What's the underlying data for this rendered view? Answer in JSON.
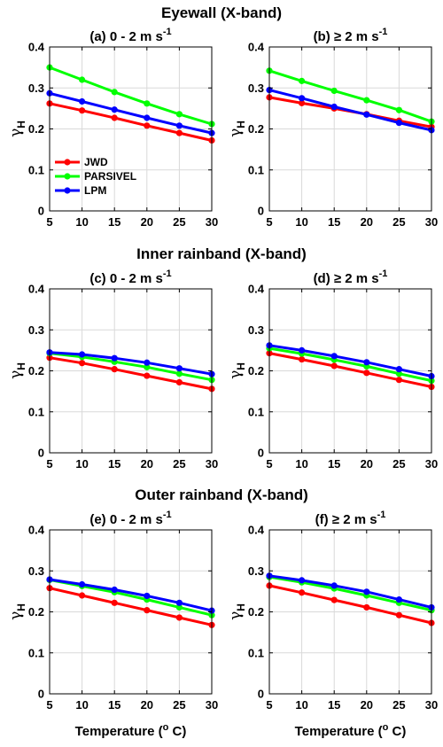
{
  "figure": {
    "rows": [
      {
        "title": "Eyewall (X-band)"
      },
      {
        "title": "Inner rainband (X-band)"
      },
      {
        "title": "Outer rainband (X-band)"
      }
    ],
    "panel_titles": [
      "(a) 0 - 2 m s",
      "(b) ≥ 2 m s",
      "(c) 0 - 2 m s",
      "(d) ≥ 2 m s",
      "(e) 0 - 2 m s",
      "(f) ≥ 2 m s"
    ],
    "panel_title_sup": "-1",
    "ylabel_main": "γ",
    "ylabel_sub": "H",
    "xlabel_main": "Temperature (",
    "xlabel_sup": "o",
    "xlabel_end": " C)"
  },
  "legend": {
    "entries": [
      "JWD",
      "PARSIVEL",
      "LPM"
    ],
    "placement": "inside panel (a), center-left"
  },
  "colors": {
    "JWD": "#ff0000",
    "PARSIVEL": "#00ff00",
    "LPM": "#0000ff",
    "grid": "#d9d9d9",
    "axes": "#000000"
  },
  "chart_data": [
    {
      "type": "line",
      "title": "(a) 0 - 2 m s-1",
      "x": [
        5,
        10,
        15,
        20,
        25,
        30
      ],
      "xlim": [
        5,
        30
      ],
      "ylim": [
        0,
        0.4
      ],
      "xticks": [
        "5",
        "10",
        "15",
        "20",
        "25",
        "30"
      ],
      "yticks": [
        "0",
        "0.1",
        "0.2",
        "0.3",
        "0.4"
      ],
      "grid": true,
      "series": [
        {
          "name": "JWD",
          "values": [
            0.262,
            0.245,
            0.227,
            0.208,
            0.19,
            0.172
          ]
        },
        {
          "name": "PARSIVEL",
          "values": [
            0.35,
            0.32,
            0.29,
            0.262,
            0.236,
            0.212
          ]
        },
        {
          "name": "LPM",
          "values": [
            0.287,
            0.267,
            0.247,
            0.227,
            0.208,
            0.19
          ]
        }
      ]
    },
    {
      "type": "line",
      "title": "(b) ≥ 2 m s-1",
      "x": [
        5,
        10,
        15,
        20,
        25,
        30
      ],
      "xlim": [
        5,
        30
      ],
      "ylim": [
        0,
        0.4
      ],
      "xticks": [
        "5",
        "10",
        "15",
        "20",
        "25",
        "30"
      ],
      "yticks": [
        "0",
        "0.1",
        "0.2",
        "0.3",
        "0.4"
      ],
      "grid": true,
      "series": [
        {
          "name": "JWD",
          "values": [
            0.277,
            0.263,
            0.25,
            0.236,
            0.22,
            0.205
          ]
        },
        {
          "name": "PARSIVEL",
          "values": [
            0.342,
            0.317,
            0.293,
            0.27,
            0.246,
            0.218
          ]
        },
        {
          "name": "LPM",
          "values": [
            0.295,
            0.275,
            0.254,
            0.235,
            0.215,
            0.197
          ]
        }
      ]
    },
    {
      "type": "line",
      "title": "(c) 0 - 2 m s-1",
      "x": [
        5,
        10,
        15,
        20,
        25,
        30
      ],
      "xlim": [
        5,
        30
      ],
      "ylim": [
        0,
        0.4
      ],
      "xticks": [
        "5",
        "10",
        "15",
        "20",
        "25",
        "30"
      ],
      "yticks": [
        "0",
        "0.1",
        "0.2",
        "0.3",
        "0.4"
      ],
      "grid": true,
      "series": [
        {
          "name": "JWD",
          "values": [
            0.232,
            0.219,
            0.204,
            0.188,
            0.172,
            0.156
          ]
        },
        {
          "name": "PARSIVEL",
          "values": [
            0.243,
            0.234,
            0.222,
            0.209,
            0.193,
            0.178
          ]
        },
        {
          "name": "LPM",
          "values": [
            0.245,
            0.24,
            0.231,
            0.22,
            0.206,
            0.192
          ]
        }
      ]
    },
    {
      "type": "line",
      "title": "(d) ≥ 2 m s-1",
      "x": [
        5,
        10,
        15,
        20,
        25,
        30
      ],
      "xlim": [
        5,
        30
      ],
      "ylim": [
        0,
        0.4
      ],
      "xticks": [
        "5",
        "10",
        "15",
        "20",
        "25",
        "30"
      ],
      "yticks": [
        "0",
        "0.1",
        "0.2",
        "0.3",
        "0.4"
      ],
      "grid": true,
      "series": [
        {
          "name": "JWD",
          "values": [
            0.243,
            0.228,
            0.212,
            0.195,
            0.178,
            0.161
          ]
        },
        {
          "name": "PARSIVEL",
          "values": [
            0.255,
            0.242,
            0.227,
            0.211,
            0.193,
            0.176
          ]
        },
        {
          "name": "LPM",
          "values": [
            0.262,
            0.25,
            0.236,
            0.221,
            0.204,
            0.187
          ]
        }
      ]
    },
    {
      "type": "line",
      "title": "(e) 0 - 2 m s-1",
      "x": [
        5,
        10,
        15,
        20,
        25,
        30
      ],
      "xlim": [
        5,
        30
      ],
      "ylim": [
        0,
        0.4
      ],
      "xticks": [
        "5",
        "10",
        "15",
        "20",
        "25",
        "30"
      ],
      "yticks": [
        "0",
        "0.1",
        "0.2",
        "0.3",
        "0.4"
      ],
      "grid": true,
      "series": [
        {
          "name": "JWD",
          "values": [
            0.258,
            0.24,
            0.222,
            0.204,
            0.186,
            0.168
          ]
        },
        {
          "name": "PARSIVEL",
          "values": [
            0.278,
            0.263,
            0.248,
            0.23,
            0.211,
            0.192
          ]
        },
        {
          "name": "LPM",
          "values": [
            0.279,
            0.267,
            0.254,
            0.239,
            0.222,
            0.203
          ]
        }
      ]
    },
    {
      "type": "line",
      "title": "(f) ≥ 2 m s-1",
      "x": [
        5,
        10,
        15,
        20,
        25,
        30
      ],
      "xlim": [
        5,
        30
      ],
      "ylim": [
        0,
        0.4
      ],
      "xticks": [
        "5",
        "10",
        "15",
        "20",
        "25",
        "30"
      ],
      "yticks": [
        "0",
        "0.1",
        "0.2",
        "0.3",
        "0.4"
      ],
      "grid": true,
      "series": [
        {
          "name": "JWD",
          "values": [
            0.264,
            0.247,
            0.229,
            0.211,
            0.192,
            0.173
          ]
        },
        {
          "name": "PARSIVEL",
          "values": [
            0.285,
            0.272,
            0.257,
            0.24,
            0.222,
            0.204
          ]
        },
        {
          "name": "LPM",
          "values": [
            0.288,
            0.277,
            0.264,
            0.249,
            0.23,
            0.211
          ]
        }
      ]
    }
  ]
}
